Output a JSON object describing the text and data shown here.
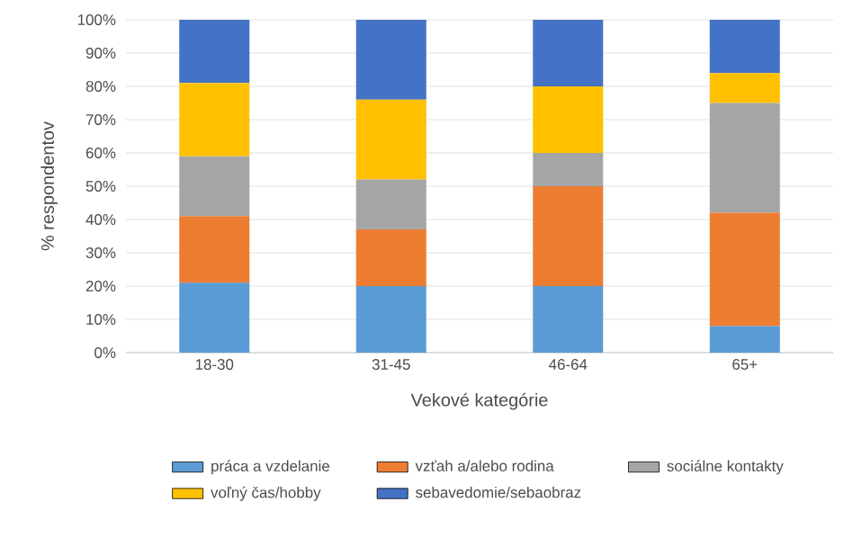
{
  "chart_data": {
    "type": "bar",
    "stacked": true,
    "xlabel": "Vekové kategórie",
    "ylabel": "% respondentov",
    "categories": [
      "18-30",
      "31-45",
      "46-64",
      "65+"
    ],
    "series": [
      {
        "name": "práca a vzdelanie",
        "color": "#5b9bd5",
        "values": [
          21,
          20,
          20,
          8
        ]
      },
      {
        "name": "vzťah a/alebo rodina",
        "color": "#ed7d31",
        "values": [
          20,
          17,
          30,
          34
        ]
      },
      {
        "name": "sociálne kontakty",
        "color": "#a5a5a5",
        "values": [
          18,
          15,
          10,
          33
        ]
      },
      {
        "name": "voľný čas/hobby",
        "color": "#ffc000",
        "values": [
          22,
          24,
          20,
          9
        ]
      },
      {
        "name": "sebavedomie/sebaobraz",
        "color": "#4472c4",
        "values": [
          19,
          24,
          20,
          16
        ]
      }
    ],
    "ylim": [
      0,
      100
    ],
    "yticks": [
      {
        "value": 0,
        "label": "0%"
      },
      {
        "value": 10,
        "label": "10%"
      },
      {
        "value": 20,
        "label": "20%"
      },
      {
        "value": 30,
        "label": "30%"
      },
      {
        "value": 40,
        "label": "40%"
      },
      {
        "value": 50,
        "label": "50%"
      },
      {
        "value": 60,
        "label": "60%"
      },
      {
        "value": 70,
        "label": "70%"
      },
      {
        "value": 80,
        "label": "80%"
      },
      {
        "value": 90,
        "label": "90%"
      },
      {
        "value": 100,
        "label": "100%"
      }
    ],
    "grid": "y",
    "legend": "bottom"
  }
}
